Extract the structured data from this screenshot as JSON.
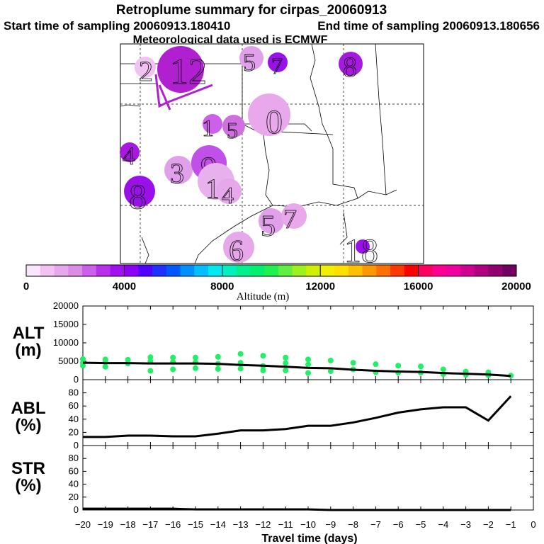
{
  "header": {
    "title": "Retroplume summary for cirpas_20060913",
    "start_time": "Start time of sampling 20060913.180410",
    "end_time": "End time of sampling 20060913.180656",
    "met_data": "Meteorological data used is ECMWF"
  },
  "map": {
    "day_labels": [
      {
        "text": "12",
        "color": "#b020d0"
      },
      {
        "text": "2",
        "color": "#f2c2f2"
      },
      {
        "text": "5",
        "color": "#e0a0ea"
      },
      {
        "text": "7",
        "color": "#9a10e8"
      },
      {
        "text": "8",
        "color": "#a818e0"
      },
      {
        "text": "0",
        "color": "#e9a8ec"
      },
      {
        "text": "1",
        "color": "#cc60e8"
      },
      {
        "text": "5",
        "color": "#d070e0"
      },
      {
        "text": "4",
        "color": "#a818e0"
      },
      {
        "text": "3",
        "color": "#e0a0ea"
      },
      {
        "text": "9",
        "color": "#c050e8"
      },
      {
        "text": "1",
        "color": "#e8b0ec"
      },
      {
        "text": "4",
        "color": "#e6a8ea"
      },
      {
        "text": "8",
        "color": "#9a10e8"
      },
      {
        "text": "5",
        "color": "#e0a0ea"
      },
      {
        "text": "7",
        "color": "#e9a8ec"
      },
      {
        "text": "6",
        "color": "#e6a8ea"
      },
      {
        "text": "18",
        "color": "#9a10e8"
      }
    ]
  },
  "colorbar": {
    "label": "Altitude (m)",
    "min": 0,
    "max": 20000,
    "tick_labels": [
      "0",
      "4000",
      "8000",
      "12000",
      "16000",
      "20000"
    ],
    "colors": [
      "#fae6fa",
      "#f2c2f2",
      "#e6a8ea",
      "#dc8ce6",
      "#cc60e8",
      "#b830ee",
      "#a010f0",
      "#8c00f8",
      "#5000ff",
      "#2030ff",
      "#0058ff",
      "#0090ff",
      "#00c0ff",
      "#00e8f0",
      "#00f0c0",
      "#00f090",
      "#00f070",
      "#20f050",
      "#60f040",
      "#a0f020",
      "#d0f000",
      "#f0f000",
      "#ffe000",
      "#ffc000",
      "#ff9800",
      "#ff7000",
      "#ff3800",
      "#ff0000",
      "#ff0060",
      "#ff0090",
      "#f000a0",
      "#d00090",
      "#b00080",
      "#900070",
      "#700060"
    ]
  },
  "chart_data": [
    {
      "type": "line",
      "panel": "ALT",
      "ylabel": "ALT (m)",
      "ylim": [
        0,
        20000
      ],
      "yticks": [
        0,
        5000,
        10000,
        15000,
        20000
      ],
      "xlabel": "Travel time (days)",
      "xlim": [
        -20,
        0
      ],
      "x": [
        -20,
        -19,
        -18,
        -17,
        -16,
        -15,
        -14,
        -13,
        -12,
        -11,
        -10,
        -9,
        -8,
        -7,
        -6,
        -5,
        -4,
        -3,
        -2,
        -1
      ],
      "series": [
        {
          "name": "mean altitude",
          "values": [
            4600,
            4500,
            4500,
            4400,
            4400,
            4400,
            4300,
            4000,
            3800,
            3500,
            3200,
            3100,
            2700,
            2400,
            2200,
            2100,
            1800,
            1600,
            1400,
            1000
          ]
        }
      ],
      "scatter": {
        "name": "particle altitudes",
        "color": "#22ee66",
        "x": [
          -20,
          -20,
          -20,
          -19,
          -19,
          -19,
          -18,
          -18,
          -17,
          -17,
          -17,
          -16,
          -16,
          -16,
          -15,
          -15,
          -15,
          -14,
          -14,
          -14,
          -13,
          -13,
          -13,
          -12,
          -12,
          -12,
          -11,
          -11,
          -11,
          -10,
          -10,
          -10,
          -9,
          -9,
          -8,
          -8,
          -7,
          -7,
          -6,
          -6,
          -5,
          -5,
          -4,
          -4,
          -3,
          -3,
          -2,
          -2,
          -1
        ],
        "y": [
          5600,
          4600,
          3800,
          5500,
          4700,
          3500,
          5400,
          4400,
          6100,
          5000,
          2400,
          6000,
          4800,
          2800,
          6000,
          4700,
          3100,
          6200,
          4300,
          2900,
          7000,
          4600,
          3000,
          6500,
          3700,
          2500,
          6000,
          4500,
          2500,
          5500,
          4100,
          1800,
          5200,
          2300,
          4600,
          2800,
          4200,
          2000,
          3800,
          1900,
          3600,
          1900,
          2800,
          1500,
          2200,
          1300,
          2000,
          1200,
          1100
        ]
      }
    },
    {
      "type": "line",
      "panel": "ABL",
      "ylabel": "ABL (%)",
      "ylim": [
        0,
        100
      ],
      "yticks": [
        0,
        20,
        40,
        60,
        80
      ],
      "xlim": [
        -20,
        0
      ],
      "x": [
        -20,
        -19,
        -18,
        -17,
        -16,
        -15,
        -14,
        -13,
        -12,
        -11,
        -10,
        -9,
        -8,
        -7,
        -6,
        -5,
        -4,
        -3,
        -2,
        -1
      ],
      "series": [
        {
          "name": "fraction in ABL",
          "values": [
            13,
            13,
            15,
            15,
            14,
            14,
            18,
            23,
            23,
            25,
            30,
            30,
            35,
            42,
            50,
            55,
            58,
            58,
            38,
            75
          ]
        }
      ]
    },
    {
      "type": "line",
      "panel": "STR",
      "ylabel": "STR (%)",
      "ylim": [
        0,
        100
      ],
      "yticks": [
        0,
        20,
        40,
        60,
        80
      ],
      "xlabel": "Travel time (days)",
      "xlim": [
        -20,
        0
      ],
      "xticks": [
        -20,
        -19,
        -18,
        -17,
        -16,
        -15,
        -14,
        -13,
        -12,
        -11,
        -10,
        -9,
        -8,
        -7,
        -6,
        -5,
        -4,
        -3,
        -2,
        -1,
        0
      ],
      "x": [
        -20,
        -19,
        -18,
        -17,
        -16,
        -15,
        -14,
        -13,
        -12,
        -11,
        -10,
        -9,
        -8,
        -7,
        -6,
        -5,
        -4,
        -3,
        -2,
        -1
      ],
      "series": [
        {
          "name": "fraction in stratosphere",
          "values": [
            2,
            2,
            2,
            2,
            2,
            1,
            1,
            1,
            1,
            1,
            1,
            0,
            0,
            0,
            0,
            0,
            0,
            0,
            0,
            0
          ]
        }
      ]
    }
  ],
  "panels": {
    "alt": {
      "label_top": "ALT",
      "label_bottom": "(m)"
    },
    "abl": {
      "label_top": "ABL",
      "label_bottom": "(%)"
    },
    "str": {
      "label_top": "STR",
      "label_bottom": "(%)"
    }
  }
}
